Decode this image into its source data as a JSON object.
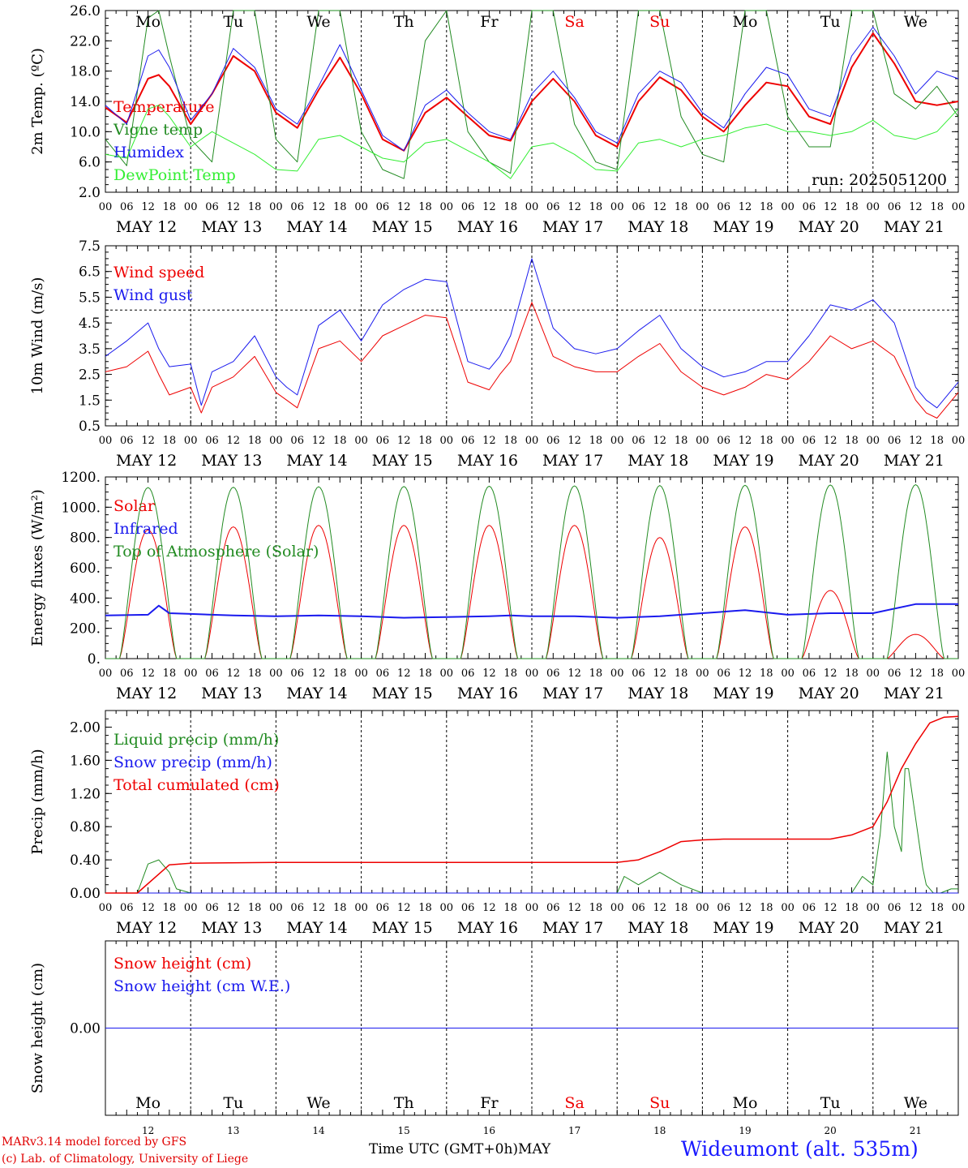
{
  "colors": {
    "red": "#ee0000",
    "dark_green": "#228b22",
    "light_green": "#33ee33",
    "blue": "#1a1aee",
    "axis": "#000000"
  },
  "days": [
    "Mo",
    "Tu",
    "We",
    "Th",
    "Fr",
    "Sa",
    "Su",
    "Mo",
    "Tu",
    "We"
  ],
  "weekend_days": [
    5,
    6
  ],
  "date_labels": [
    "MAY 12",
    "MAY 13",
    "MAY 14",
    "MAY 15",
    "MAY 16",
    "MAY 17",
    "MAY 18",
    "MAY 19",
    "MAY 20",
    "MAY 21"
  ],
  "hour_labels": [
    "00",
    "06",
    "12",
    "18"
  ],
  "bottom_day_numbers": [
    "12",
    "13",
    "14",
    "15",
    "16",
    "17",
    "18",
    "19",
    "20",
    "21"
  ],
  "run_label": "run: 2025051200",
  "footer": {
    "model": "MARv3.14 model forced by GFS",
    "lab": "(c) Lab. of Climatology, University of Liege",
    "xaxis_title": "Time UTC (GMT+0h)MAY",
    "station": "Wideumont (alt. 535m)"
  },
  "chart_data": [
    {
      "type": "line",
      "id": "temp",
      "ylabel": "2m Temp. (ºC)",
      "ylim": [
        2,
        26
      ],
      "yticks": [
        "2.0",
        "6.0",
        "10.0",
        "14.0",
        "18.0",
        "22.0",
        "26.0"
      ],
      "x_unit": "hours since 2025-05-12 00 UTC",
      "xlim": [
        0,
        240
      ],
      "series": [
        {
          "name": "Temperature",
          "color": "red",
          "width": 2,
          "x": [
            0,
            6,
            12,
            15,
            18,
            24,
            30,
            36,
            42,
            48,
            54,
            60,
            66,
            72,
            78,
            84,
            90,
            96,
            102,
            108,
            114,
            120,
            126,
            132,
            138,
            144,
            150,
            156,
            162,
            168,
            174,
            180,
            186,
            192,
            198,
            204,
            210,
            216,
            222,
            228,
            234,
            240
          ],
          "y": [
            13.2,
            11.2,
            17.0,
            17.5,
            16.0,
            11.0,
            15.0,
            20.0,
            18.0,
            12.5,
            10.5,
            15.5,
            19.8,
            15.0,
            9.0,
            7.5,
            12.5,
            14.5,
            12.0,
            9.5,
            8.8,
            14.0,
            17.0,
            14.0,
            9.5,
            8.0,
            14.0,
            17.2,
            15.5,
            12.0,
            10.0,
            13.5,
            16.5,
            16.0,
            12.0,
            11.0,
            18.5,
            23.0,
            19.0,
            14.0,
            13.5,
            14.0
          ]
        },
        {
          "name": "Vigne temp",
          "color": "dark_green",
          "width": 1,
          "x": [
            0,
            6,
            12,
            15,
            18,
            24,
            30,
            36,
            42,
            48,
            54,
            60,
            66,
            72,
            78,
            84,
            90,
            96,
            102,
            108,
            114,
            120,
            126,
            132,
            138,
            144,
            150,
            156,
            162,
            168,
            174,
            180,
            186,
            192,
            198,
            204,
            210,
            216,
            222,
            228,
            234,
            240
          ],
          "y": [
            9.0,
            5.5,
            25.0,
            26.0,
            20.0,
            9.0,
            6.0,
            26.0,
            26.0,
            9.0,
            6.0,
            26.0,
            26.0,
            10.0,
            5.0,
            3.8,
            22.0,
            26.0,
            10.0,
            6.0,
            4.5,
            26.0,
            26.0,
            11.0,
            6.0,
            5.0,
            26.0,
            26.0,
            12.0,
            7.0,
            6.0,
            26.0,
            26.0,
            12.0,
            8.0,
            8.0,
            26.0,
            26.0,
            15.0,
            13.0,
            16.0,
            12.0
          ]
        },
        {
          "name": "Humidex",
          "color": "blue",
          "width": 1,
          "x": [
            0,
            6,
            12,
            15,
            18,
            24,
            30,
            36,
            42,
            48,
            54,
            60,
            66,
            72,
            78,
            84,
            90,
            96,
            102,
            108,
            114,
            120,
            126,
            132,
            138,
            144,
            150,
            156,
            162,
            168,
            174,
            180,
            186,
            192,
            198,
            204,
            210,
            216,
            222,
            228,
            234,
            240
          ],
          "y": [
            13.5,
            11.0,
            20.0,
            20.8,
            18.5,
            11.5,
            15.0,
            21.0,
            18.5,
            13.0,
            11.0,
            16.0,
            21.5,
            15.5,
            9.5,
            7.5,
            13.5,
            15.5,
            12.5,
            10.0,
            9.0,
            15.0,
            18.0,
            14.5,
            10.0,
            8.5,
            15.0,
            18.0,
            16.5,
            12.5,
            10.5,
            15.0,
            18.5,
            17.5,
            13.0,
            12.0,
            20.0,
            23.8,
            20.0,
            15.0,
            18.0,
            17.0
          ]
        },
        {
          "name": "DewPoint Temp",
          "color": "light_green",
          "width": 1,
          "x": [
            0,
            6,
            12,
            15,
            18,
            24,
            30,
            36,
            42,
            48,
            54,
            60,
            66,
            72,
            78,
            84,
            90,
            96,
            102,
            108,
            114,
            120,
            126,
            132,
            138,
            144,
            150,
            156,
            162,
            168,
            174,
            180,
            186,
            192,
            198,
            204,
            210,
            216,
            222,
            228,
            234,
            240
          ],
          "y": [
            7.0,
            6.5,
            13.0,
            13.5,
            12.0,
            8.0,
            10.0,
            8.5,
            7.0,
            5.0,
            4.8,
            9.0,
            9.5,
            8.0,
            6.5,
            6.0,
            8.5,
            9.0,
            7.5,
            6.0,
            3.8,
            8.0,
            8.5,
            7.0,
            5.0,
            4.8,
            8.5,
            9.0,
            8.0,
            9.0,
            9.5,
            10.5,
            11.0,
            10.0,
            10.0,
            9.5,
            10.0,
            11.5,
            9.5,
            9.0,
            10.0,
            13.0
          ]
        }
      ]
    },
    {
      "type": "line",
      "id": "wind",
      "ylabel": "10m Wind (m/s)",
      "ylim": [
        0.5,
        7.5
      ],
      "yticks": [
        "0.5",
        "1.5",
        "2.5",
        "3.5",
        "4.5",
        "5.5",
        "6.5",
        "7.5"
      ],
      "reference_line": 5.0,
      "xlim": [
        0,
        240
      ],
      "series": [
        {
          "name": "Wind speed",
          "color": "red",
          "width": 1,
          "x": [
            0,
            6,
            12,
            15,
            18,
            24,
            27,
            30,
            36,
            42,
            48,
            51,
            54,
            60,
            66,
            72,
            75,
            78,
            84,
            90,
            96,
            102,
            108,
            111,
            114,
            120,
            126,
            132,
            138,
            144,
            150,
            156,
            162,
            168,
            174,
            180,
            186,
            192,
            198,
            204,
            210,
            216,
            222,
            228,
            231,
            234,
            240
          ],
          "y": [
            2.6,
            2.8,
            3.4,
            2.5,
            1.7,
            2.0,
            1.0,
            2.0,
            2.4,
            3.2,
            1.8,
            1.5,
            1.2,
            3.5,
            3.8,
            3.0,
            3.5,
            4.0,
            4.4,
            4.8,
            4.7,
            2.2,
            1.9,
            2.5,
            3.0,
            5.3,
            3.2,
            2.8,
            2.6,
            2.6,
            3.2,
            3.7,
            2.6,
            2.0,
            1.7,
            2.0,
            2.5,
            2.3,
            3.0,
            4.0,
            3.5,
            3.8,
            3.2,
            1.5,
            1.0,
            0.8,
            1.8
          ]
        },
        {
          "name": "Wind gust",
          "color": "blue",
          "width": 1,
          "x": [
            0,
            6,
            12,
            15,
            18,
            24,
            27,
            30,
            36,
            42,
            48,
            51,
            54,
            60,
            66,
            72,
            75,
            78,
            84,
            90,
            96,
            102,
            108,
            111,
            114,
            120,
            126,
            132,
            138,
            144,
            150,
            156,
            162,
            168,
            174,
            180,
            186,
            192,
            198,
            204,
            210,
            216,
            222,
            228,
            231,
            234,
            240
          ],
          "y": [
            3.2,
            3.8,
            4.5,
            3.5,
            2.8,
            2.9,
            1.3,
            2.6,
            3.0,
            4.0,
            2.4,
            2.0,
            1.7,
            4.4,
            5.0,
            3.8,
            4.5,
            5.2,
            5.8,
            6.2,
            6.1,
            3.0,
            2.7,
            3.2,
            4.0,
            7.0,
            4.3,
            3.5,
            3.3,
            3.5,
            4.2,
            4.8,
            3.5,
            2.8,
            2.4,
            2.6,
            3.0,
            3.0,
            4.0,
            5.2,
            5.0,
            5.4,
            4.5,
            2.0,
            1.5,
            1.2,
            2.2
          ]
        }
      ]
    },
    {
      "type": "line",
      "id": "energy",
      "ylabel": "Energy fluxes (W/m²)",
      "ylim": [
        0,
        1200
      ],
      "yticks": [
        "0.",
        "200.",
        "400.",
        "600.",
        "800.",
        "1000.",
        "1200."
      ],
      "xlim": [
        0,
        240
      ],
      "series": [
        {
          "name": "Solar",
          "color": "red",
          "width": 1,
          "day_peaks": [
            850,
            870,
            880,
            880,
            880,
            880,
            800,
            870,
            450,
            160
          ],
          "sunrise_h": 4,
          "sunset_h": 20
        },
        {
          "name": "Infrared",
          "color": "blue",
          "width": 2,
          "x": [
            0,
            12,
            15,
            18,
            24,
            36,
            48,
            60,
            72,
            84,
            96,
            108,
            114,
            120,
            132,
            144,
            156,
            168,
            180,
            192,
            204,
            216,
            228,
            240
          ],
          "y": [
            285,
            290,
            350,
            300,
            295,
            285,
            280,
            285,
            280,
            270,
            275,
            280,
            285,
            280,
            280,
            270,
            280,
            300,
            320,
            290,
            300,
            300,
            360,
            360
          ]
        },
        {
          "name": "Top of Atmosphere (Solar)",
          "color": "dark_green",
          "width": 1,
          "day_peaks": [
            1130,
            1132,
            1135,
            1137,
            1139,
            1141,
            1143,
            1145,
            1147,
            1149
          ],
          "sunrise_h": 4,
          "sunset_h": 20
        }
      ]
    },
    {
      "type": "line",
      "id": "precip",
      "ylabel": "Precip (mm/h)",
      "ylim": [
        0,
        2.2
      ],
      "yticks": [
        "0.00",
        "0.40",
        "0.80",
        "1.20",
        "1.60",
        "2.00"
      ],
      "xlim": [
        0,
        240
      ],
      "series": [
        {
          "name": "Liquid precip (mm/h)",
          "color": "dark_green",
          "width": 1,
          "x": [
            0,
            9,
            12,
            15,
            18,
            20,
            24,
            48,
            72,
            96,
            120,
            144,
            146,
            150,
            156,
            162,
            168,
            174,
            192,
            210,
            213,
            216,
            218,
            220,
            222,
            224,
            225,
            226,
            230,
            231,
            232,
            233,
            235,
            238,
            240
          ],
          "y": [
            0,
            0,
            0.35,
            0.4,
            0.25,
            0.05,
            0,
            0,
            0,
            0,
            0,
            0,
            0.2,
            0.1,
            0.25,
            0.1,
            0,
            0,
            0,
            0,
            0.2,
            0.1,
            0.7,
            1.7,
            0.8,
            0.5,
            1.5,
            1.5,
            0.3,
            0.1,
            0.05,
            0,
            0,
            0.05,
            0.05
          ]
        },
        {
          "name": "Snow precip (mm/h)",
          "color": "blue",
          "width": 1,
          "x": [
            0,
            240
          ],
          "y": [
            0,
            0
          ]
        },
        {
          "name": "Total cumulated (cm)",
          "color": "red",
          "width": 1.5,
          "x": [
            0,
            9,
            18,
            24,
            48,
            96,
            144,
            150,
            156,
            162,
            168,
            174,
            192,
            204,
            210,
            216,
            220,
            224,
            228,
            232,
            236,
            240
          ],
          "y": [
            0,
            0,
            0.34,
            0.36,
            0.37,
            0.37,
            0.37,
            0.4,
            0.5,
            0.62,
            0.64,
            0.65,
            0.65,
            0.65,
            0.7,
            0.8,
            1.1,
            1.5,
            1.8,
            2.05,
            2.12,
            2.13
          ]
        }
      ]
    },
    {
      "type": "line",
      "id": "snow",
      "ylabel": "Snow height (cm)",
      "ylim": [
        -1,
        1
      ],
      "yticks": [
        "0.00"
      ],
      "xlim": [
        0,
        240
      ],
      "series": [
        {
          "name": "Snow height (cm)",
          "color": "red",
          "width": 1,
          "x": [
            0,
            240
          ],
          "y": [
            0,
            0
          ]
        },
        {
          "name": "Snow height (cm W.E.)",
          "color": "blue",
          "width": 1,
          "x": [
            0,
            240
          ],
          "y": [
            0,
            0
          ]
        }
      ]
    }
  ]
}
